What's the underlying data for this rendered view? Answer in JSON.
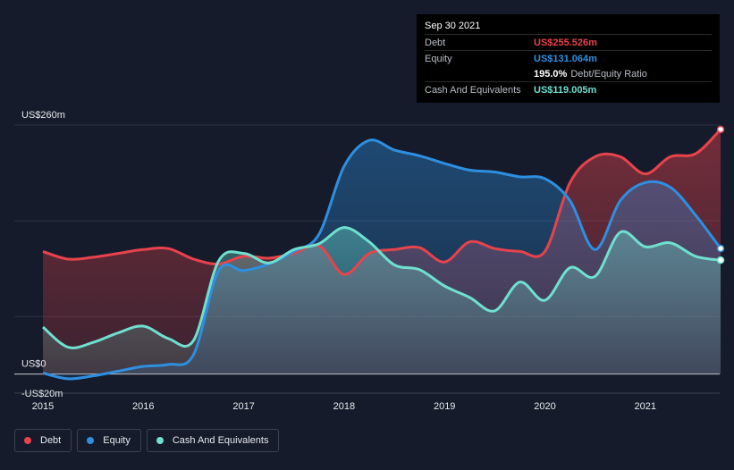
{
  "chart_data": {
    "type": "area",
    "x_start": 2014.93,
    "x_end": 2021.75,
    "ylim": [
      -20,
      260
    ],
    "y_axis_labels": [
      {
        "value": 260,
        "label": "US$260m"
      },
      {
        "value": 0,
        "label": "US$0"
      },
      {
        "value": -20,
        "label": "-US$20m"
      }
    ],
    "x_ticks": [
      {
        "value": 2015,
        "label": "2015"
      },
      {
        "value": 2016,
        "label": "2016"
      },
      {
        "value": 2017,
        "label": "2017"
      },
      {
        "value": 2018,
        "label": "2018"
      },
      {
        "value": 2019,
        "label": "2019"
      },
      {
        "value": 2020,
        "label": "2020"
      },
      {
        "value": 2021,
        "label": "2021"
      }
    ],
    "series": [
      {
        "name": "Debt",
        "color": "#e8434c",
        "x": [
          2015.0,
          2015.25,
          2015.5,
          2015.75,
          2016.0,
          2016.25,
          2016.5,
          2016.75,
          2017.0,
          2017.25,
          2017.5,
          2017.75,
          2018.0,
          2018.25,
          2018.5,
          2018.75,
          2019.0,
          2019.25,
          2019.5,
          2019.75,
          2020.0,
          2020.25,
          2020.5,
          2020.75,
          2021.0,
          2021.25,
          2021.5,
          2021.75
        ],
        "values": [
          128,
          120,
          122,
          126,
          130,
          131,
          120,
          115,
          123,
          121,
          126,
          134,
          104,
          126,
          130,
          132,
          117,
          138,
          131,
          128,
          128,
          200,
          227,
          227,
          209,
          227,
          230,
          255.5
        ]
      },
      {
        "name": "Equity",
        "color": "#2e8fe0",
        "x": [
          2015.0,
          2015.25,
          2015.5,
          2015.75,
          2016.0,
          2016.25,
          2016.5,
          2016.75,
          2017.0,
          2017.25,
          2017.5,
          2017.75,
          2018.0,
          2018.25,
          2018.5,
          2018.75,
          2019.0,
          2019.25,
          2019.5,
          2019.75,
          2020.0,
          2020.25,
          2020.5,
          2020.75,
          2021.0,
          2021.25,
          2021.5,
          2021.75
        ],
        "values": [
          1,
          -5,
          -2,
          3,
          8,
          10,
          20,
          108,
          108,
          115,
          128,
          146,
          217,
          244,
          234,
          228,
          220,
          213,
          211,
          206,
          204,
          181,
          130,
          181,
          200,
          195,
          166,
          131.1
        ]
      },
      {
        "name": "Cash And Equivalents",
        "color": "#6fe0cf",
        "x": [
          2015.0,
          2015.25,
          2015.5,
          2015.75,
          2016.0,
          2016.25,
          2016.5,
          2016.75,
          2017.0,
          2017.25,
          2017.5,
          2017.75,
          2018.0,
          2018.25,
          2018.5,
          2018.75,
          2019.0,
          2019.25,
          2019.5,
          2019.75,
          2020.0,
          2020.25,
          2020.5,
          2020.75,
          2021.0,
          2021.25,
          2021.5,
          2021.75
        ],
        "values": [
          49,
          28,
          33,
          43,
          50,
          37,
          35,
          118,
          126,
          116,
          130,
          136,
          153,
          138,
          114,
          109,
          92,
          80,
          66,
          96,
          77,
          111,
          102,
          148,
          133,
          137,
          123,
          119
        ]
      }
    ],
    "tooltip": {
      "date": "Sep 30 2021",
      "rows": [
        {
          "name": "Debt",
          "value": "US$255.526m",
          "color": "#e8434c"
        },
        {
          "name": "Equity",
          "value": "US$131.064m",
          "color": "#2e8fe0"
        },
        {
          "ratio_value": "195.0%",
          "ratio_label": "Debt/Equity Ratio"
        },
        {
          "name": "Cash And Equivalents",
          "value": "US$119.005m",
          "color": "#6fe0cf"
        }
      ]
    },
    "legend": [
      {
        "name": "Debt",
        "color": "#e8434c"
      },
      {
        "name": "Equity",
        "color": "#2e8fe0"
      },
      {
        "name": "Cash And Equivalents",
        "color": "#6fe0cf"
      }
    ],
    "legend_position": "bottom-left"
  }
}
